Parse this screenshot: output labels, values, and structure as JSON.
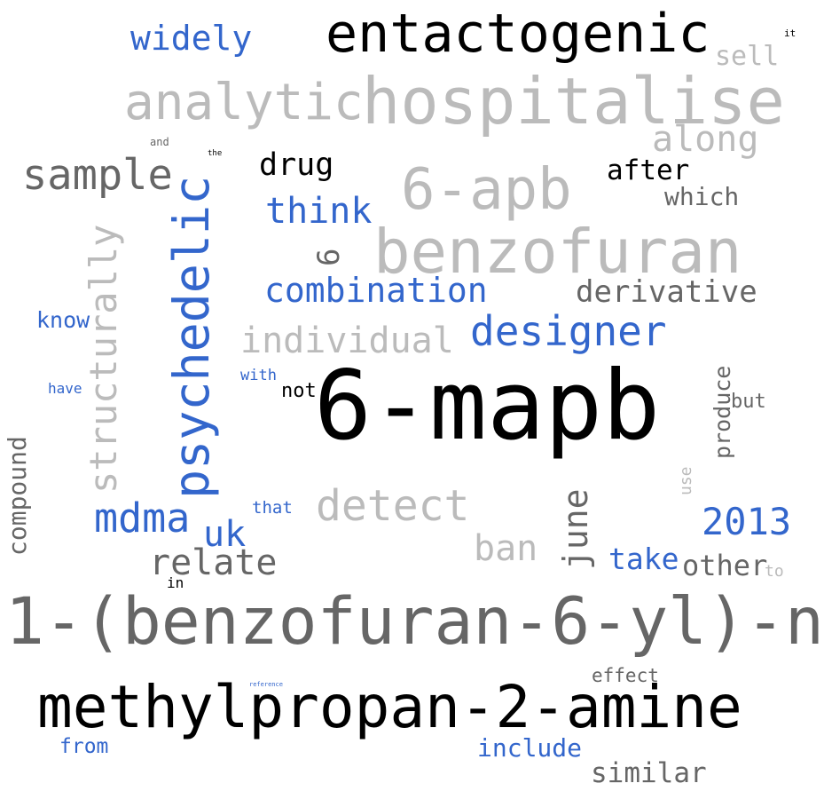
{
  "palette": {
    "black": "#000000",
    "dark_gray": "#666666",
    "light_gray": "#bbbbbb",
    "blue": "#3366cc"
  },
  "words": {
    "entactogenic": "entactogenic",
    "widely": "widely",
    "sell": "sell",
    "it": "it",
    "analytic": "analytic",
    "hospitalise": "hospitalise",
    "along": "along",
    "and": "and",
    "the": "the",
    "sample": "sample",
    "drug": "drug",
    "six_apb": "6-apb",
    "after": "after",
    "which": "which",
    "think": "think",
    "psychedelic": "psychedelic",
    "structurally": "structurally",
    "six": "6",
    "benzofuran": "benzofuran",
    "combination": "combination",
    "derivative": "derivative",
    "know": "know",
    "designer": "designer",
    "individual": "individual",
    "have": "have",
    "with": "with",
    "not": "not",
    "six_mapb": "6-mapb",
    "produce": "produce",
    "but": "but",
    "compound": "compound",
    "use": "use",
    "detect": "detect",
    "june": "june",
    "mdma": "mdma",
    "that": "that",
    "uk": "uk",
    "year_2013": "2013",
    "ban": "ban",
    "relate": "relate",
    "take": "take",
    "other": "other",
    "to": "to",
    "in": "in",
    "long_name_1": "1-(benzofuran-6-yl)-n",
    "effect": "effect",
    "reference": "reference",
    "long_name_2": "methylpropan-2-amine",
    "from": "from",
    "include": "include",
    "similar": "similar"
  }
}
